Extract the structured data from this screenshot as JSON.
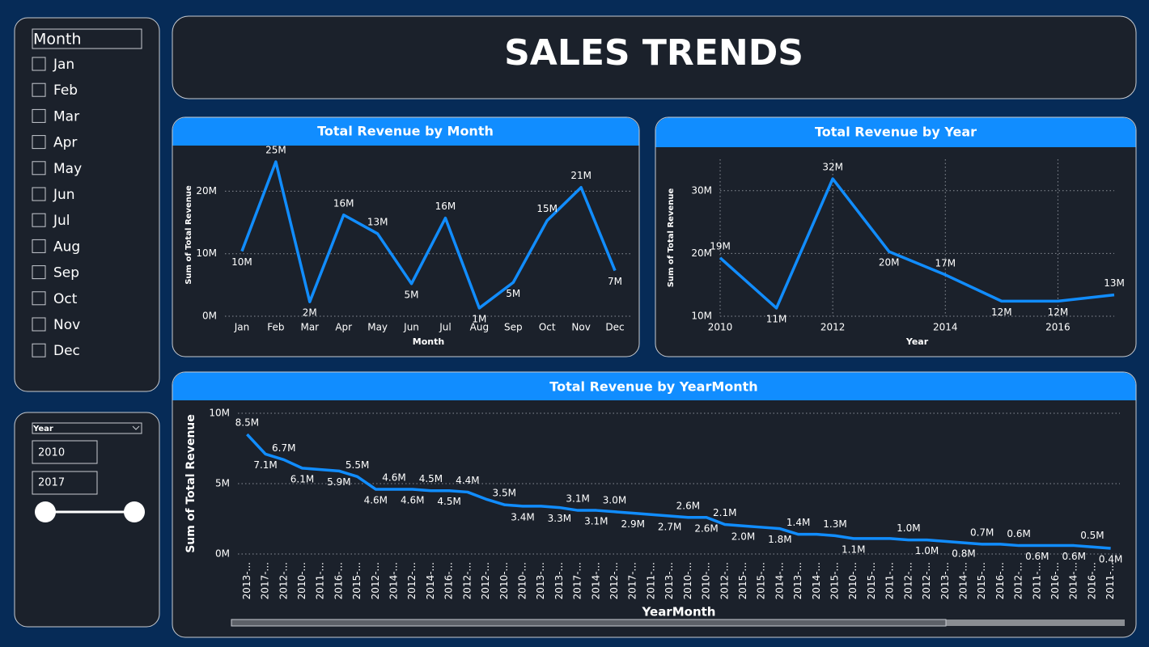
{
  "page": {
    "title": "SALES TRENDS"
  },
  "month_slicer": {
    "header": "Month",
    "items": [
      "Jan",
      "Feb",
      "Mar",
      "Apr",
      "May",
      "Jun",
      "Jul",
      "Aug",
      "Sep",
      "Oct",
      "Nov",
      "Dec"
    ]
  },
  "year_slicer": {
    "header": "Year",
    "start": "2010",
    "end": "2017"
  },
  "chart_data": [
    {
      "type": "line",
      "title": "Total Revenue by Month",
      "x_label": "Month",
      "y_label": "Sum of Total Revenue",
      "color": "#118dff",
      "grid": true,
      "categories": [
        "Jan",
        "Feb",
        "Mar",
        "Apr",
        "May",
        "Jun",
        "Jul",
        "Aug",
        "Sep",
        "Oct",
        "Nov",
        "Dec"
      ],
      "values": [
        10400000,
        24700000,
        2300000,
        16200000,
        13200000,
        5200000,
        15700000,
        1300000,
        5400000,
        15300000,
        20600000,
        7300000
      ],
      "value_labels": [
        "10M",
        "25M",
        "2M",
        "16M",
        "13M",
        "5M",
        "16M",
        "1M",
        "5M",
        "15M",
        "21M",
        "7M"
      ],
      "ylim": [
        0,
        26000000
      ],
      "yticks": [
        {
          "value": 0,
          "label": "0M"
        },
        {
          "value": 10000000,
          "label": "10M"
        },
        {
          "value": 20000000,
          "label": "20M"
        }
      ]
    },
    {
      "type": "line",
      "title": "Total Revenue by Year",
      "x_label": "Year",
      "y_label": "Sum of Total Revenue",
      "color": "#118dff",
      "grid": true,
      "xgrid": true,
      "x": [
        2010,
        2011,
        2012,
        2013,
        2014,
        2015,
        2016,
        2017
      ],
      "values": [
        19300000,
        11300000,
        31900000,
        20300000,
        16600000,
        12400000,
        12400000,
        13400000
      ],
      "value_labels": [
        "19M",
        "11M",
        "32M",
        "20M",
        "17M",
        "12M",
        "12M",
        "13M"
      ],
      "xlim": [
        2010,
        2017
      ],
      "xticks": [
        2010,
        2012,
        2014,
        2016
      ],
      "ylim": [
        10000000,
        35000000
      ],
      "yticks": [
        {
          "value": 10000000,
          "label": "10M"
        },
        {
          "value": 20000000,
          "label": "20M"
        },
        {
          "value": 30000000,
          "label": "30M"
        }
      ]
    },
    {
      "type": "line",
      "title": "Total Revenue by YearMonth",
      "x_label": "YearMonth",
      "y_label": "Sum of Total Revenue",
      "color": "#118dff",
      "grid": true,
      "categories": [
        "2013-...",
        "2017-...",
        "2012-...",
        "2010-...",
        "2011-...",
        "2016-...",
        "2015-...",
        "2012-...",
        "2014-...",
        "2012-...",
        "2014-...",
        "2016-...",
        "2012-...",
        "2012-...",
        "2010-...",
        "2010-...",
        "2013-...",
        "2013-...",
        "2017-...",
        "2014-...",
        "2012-...",
        "2017-...",
        "2011-...",
        "2013-...",
        "2010-...",
        "2010-...",
        "2012-...",
        "2015-...",
        "2015-...",
        "2014-...",
        "2013-...",
        "2014-...",
        "2015-...",
        "2010-...",
        "2015-...",
        "2011-...",
        "2012-...",
        "2012-...",
        "2013-...",
        "2014-...",
        "2015-...",
        "2016-...",
        "2012-...",
        "2011-...",
        "2016-...",
        "2014-...",
        "2016-...",
        "2011-..."
      ],
      "values": [
        8500000,
        7100000,
        6700000,
        6100000,
        6000000,
        5900000,
        5500000,
        4600000,
        4600000,
        4600000,
        4500000,
        4500000,
        4400000,
        3900000,
        3500000,
        3400000,
        3400000,
        3300000,
        3100000,
        3100000,
        3000000,
        2900000,
        2800000,
        2700000,
        2600000,
        2600000,
        2100000,
        2000000,
        1900000,
        1800000,
        1400000,
        1400000,
        1300000,
        1100000,
        1100000,
        1100000,
        1000000,
        1000000,
        900000,
        800000,
        700000,
        700000,
        600000,
        600000,
        600000,
        600000,
        500000,
        400000
      ],
      "value_labels": [
        "8.5M",
        "7.1M",
        "6.7M",
        "6.1M",
        null,
        "5.9M",
        "5.5M",
        "4.6M",
        "4.6M",
        "4.6M",
        "4.5M",
        "4.5M",
        "4.4M",
        null,
        "3.5M",
        "3.4M",
        null,
        "3.3M",
        "3.1M",
        "3.1M",
        "3.0M",
        "2.9M",
        null,
        "2.7M",
        "2.6M",
        "2.6M",
        "2.1M",
        "2.0M",
        null,
        "1.8M",
        "1.4M",
        null,
        "1.3M",
        "1.1M",
        null,
        null,
        "1.0M",
        "1.0M",
        null,
        "0.8M",
        "0.7M",
        null,
        "0.6M",
        "0.6M",
        null,
        "0.6M",
        "0.5M",
        "0.4M"
      ],
      "ylim": [
        0,
        10000000
      ],
      "yticks": [
        {
          "value": 0,
          "label": "0M"
        },
        {
          "value": 5000000,
          "label": "5M"
        },
        {
          "value": 10000000,
          "label": "10M"
        }
      ]
    }
  ]
}
